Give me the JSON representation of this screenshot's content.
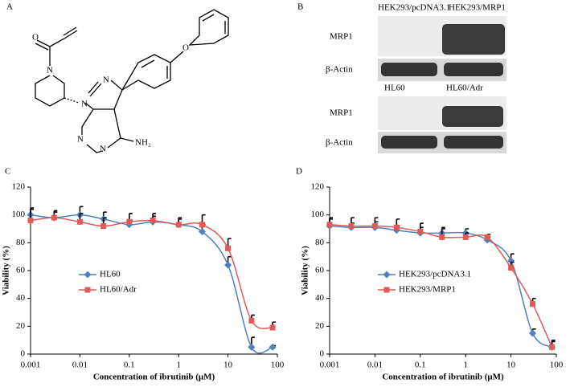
{
  "panels": {
    "a": "A",
    "b": "B",
    "c": "C",
    "d": "D"
  },
  "structure": {
    "atoms": [
      "O",
      "N",
      "N",
      "N",
      "N",
      "N",
      "NH₂",
      "O"
    ]
  },
  "blot": {
    "top": {
      "lanes": [
        "HEK293/pcDNA3.1",
        "HEK293/MRP1"
      ],
      "rows": [
        "MRP1",
        "β-Actin"
      ]
    },
    "bottom": {
      "lanes": [
        "HL60",
        "HL60/Adr"
      ],
      "rows": [
        "MRP1",
        "β-Actin"
      ]
    }
  },
  "chart_data": [
    {
      "type": "line",
      "xlabel": "Concentration of ibrutinib (μM)",
      "ylabel": "Viability (%)",
      "log_x": true,
      "x": [
        0.001,
        0.003,
        0.01,
        0.03,
        0.1,
        0.3,
        1,
        3,
        10,
        30,
        80
      ],
      "xlim": [
        0.001,
        100
      ],
      "xticks": [
        0.001,
        0.01,
        0.1,
        1,
        10,
        100
      ],
      "ylim": [
        0,
        120
      ],
      "yticks": [
        0,
        20,
        40,
        60,
        80,
        100,
        120
      ],
      "legend": "center-left",
      "series": [
        {
          "name": "HL60",
          "color": "#4f81bd",
          "marker": "diamond",
          "values": [
            100,
            98,
            100,
            97,
            93,
            95,
            93,
            88,
            64,
            5,
            5
          ],
          "errors": [
            5,
            4,
            6,
            5,
            3,
            4,
            4,
            5,
            6,
            7,
            1
          ]
        },
        {
          "name": "HL60/Adr",
          "color": "#e05a57",
          "marker": "square",
          "values": [
            96,
            98,
            95,
            92,
            95,
            96,
            93,
            93,
            76,
            24,
            19
          ],
          "errors": [
            8,
            5,
            6,
            6,
            6,
            5,
            5,
            7,
            7,
            4,
            4
          ]
        }
      ]
    },
    {
      "type": "line",
      "xlabel": "Concentration of ibrutinib (μM)",
      "ylabel": "Viability (%)",
      "log_x": true,
      "x": [
        0.001,
        0.003,
        0.01,
        0.03,
        0.1,
        0.3,
        1,
        3,
        10,
        30,
        80
      ],
      "xlim": [
        0.001,
        100
      ],
      "xticks": [
        0.001,
        0.01,
        0.1,
        1,
        10,
        100
      ],
      "ylim": [
        0,
        120
      ],
      "yticks": [
        0,
        20,
        40,
        60,
        80,
        100,
        120
      ],
      "legend": "center-left",
      "series": [
        {
          "name": "HEK293/pcDNA3.1",
          "color": "#4f81bd",
          "marker": "diamond",
          "values": [
            92,
            91,
            91,
            89,
            87,
            87,
            87,
            82,
            67,
            15,
            5
          ],
          "errors": [
            5,
            3,
            4,
            3,
            4,
            4,
            3,
            2,
            5,
            3,
            5
          ]
        },
        {
          "name": "HEK293/MRP1",
          "color": "#e05a57",
          "marker": "square",
          "values": [
            93,
            92,
            92,
            91,
            88,
            84,
            84,
            84,
            62,
            36,
            5
          ],
          "errors": [
            5,
            6,
            6,
            6,
            6,
            6,
            3,
            2,
            4,
            4,
            4
          ]
        }
      ]
    }
  ]
}
